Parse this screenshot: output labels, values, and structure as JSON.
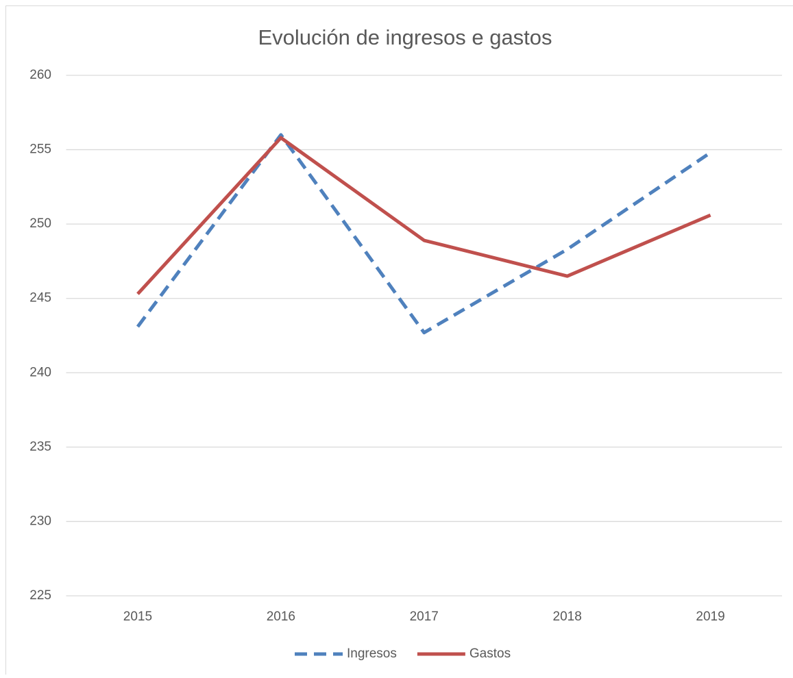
{
  "chart_data": {
    "type": "line",
    "title": "Evolución de ingresos e gastos",
    "categories": [
      "2015",
      "2016",
      "2017",
      "2018",
      "2019"
    ],
    "series": [
      {
        "name": "Ingresos",
        "color": "#4f81bd",
        "style": "dashed",
        "values": [
          243.1,
          256.0,
          242.7,
          248.3,
          254.8
        ]
      },
      {
        "name": "Gastos",
        "color": "#c0504d",
        "style": "solid",
        "values": [
          245.3,
          255.8,
          248.9,
          246.5,
          250.6
        ]
      }
    ],
    "ylim": [
      225,
      260
    ],
    "yticks": [
      225,
      230,
      235,
      240,
      245,
      250,
      255,
      260
    ],
    "grid": true,
    "legend": "bottom"
  }
}
